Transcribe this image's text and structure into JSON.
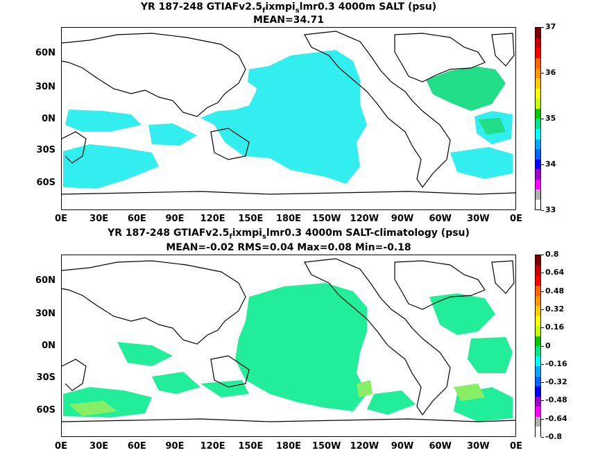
{
  "panels": [
    {
      "title_pre": "YR 187-248 GTIAFv2.5",
      "title_sub": "f",
      "title_mid": "ixmpi",
      "title_sub2": "s",
      "title_post": "lmr0.3 4000m SALT (psu)",
      "stats": "MEAN=34.71",
      "colorbar_labels": [
        "37",
        "36",
        "35",
        "34",
        "33"
      ],
      "fill_color": "#33eeee",
      "patch_color": "#22dd88"
    },
    {
      "title_pre": "YR 187-248 GTIAFv2.5",
      "title_sub": "f",
      "title_mid": "ixmpi",
      "title_sub2": "s",
      "title_post": "lmr0.3 4000m SALT-climatology (psu)",
      "stats": "MEAN=-0.02   RMS=0.04   Max=0.08   Min=-0.18",
      "colorbar_labels": [
        "0.8",
        "0.64",
        "0.48",
        "0.32",
        "0.16",
        "0",
        "-0.16",
        "-0.32",
        "-0.48",
        "-0.64",
        "-0.8"
      ],
      "fill_color": "#22ee99",
      "patch_color": "#88ee66"
    }
  ],
  "lat_labels": [
    "60N",
    "30N",
    "0N",
    "30S",
    "60S"
  ],
  "lon_labels": [
    "0E",
    "30E",
    "60E",
    "90E",
    "120E",
    "150E",
    "180E",
    "150W",
    "120W",
    "90W",
    "60W",
    "30W",
    "0E"
  ],
  "colorbar_colors": [
    "#ffffff",
    "#b0b0b0",
    "#ff00ff",
    "#a000c8",
    "#0000ff",
    "#0064ff",
    "#00aaff",
    "#00ffff",
    "#00e68c",
    "#00c800",
    "#c8ff00",
    "#ffff00",
    "#ffcc00",
    "#ff9900",
    "#ff6600",
    "#ff0000",
    "#c80000",
    "#7d0000"
  ]
}
